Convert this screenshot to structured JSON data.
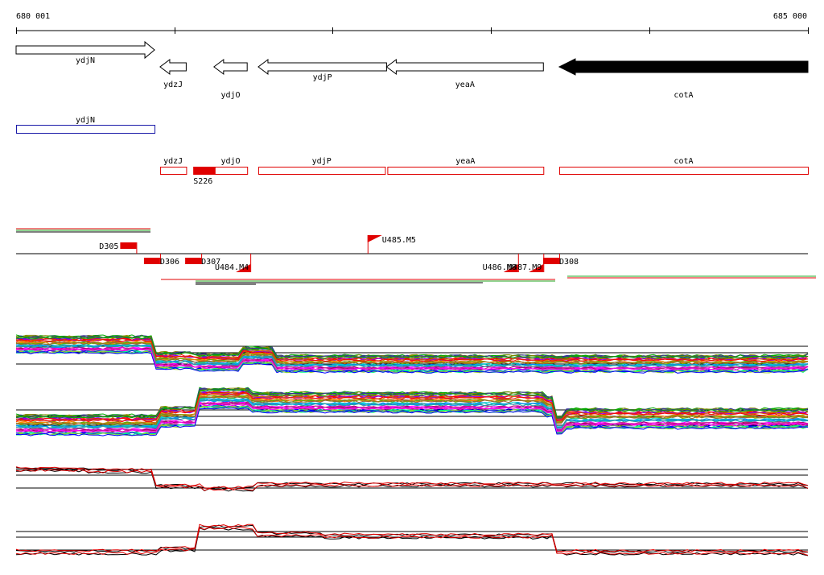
{
  "ruler": {
    "start_label": "680 001",
    "end_label": "685 000",
    "start_bp": 680001,
    "end_bp": 685000
  },
  "colors": {
    "gene_outline": "#000000",
    "filled_gene": "#000000",
    "blue_region": "#1a1aa8",
    "red_region": "#e00000",
    "trace_black": "#000000",
    "trace_red": "#e00000",
    "trace_green": "#22aa22"
  },
  "genes": [
    {
      "name": "ydjN",
      "start": 680001,
      "end": 680875,
      "strand": "+",
      "filled": false,
      "label_row": 0
    },
    {
      "name": "ydzJ",
      "start": 680910,
      "end": 681075,
      "strand": "-",
      "filled": false,
      "label_row": 1
    },
    {
      "name": "ydjO",
      "start": 681250,
      "end": 681460,
      "strand": "-",
      "filled": false,
      "label_row": 2
    },
    {
      "name": "ydjP",
      "start": 681530,
      "end": 682340,
      "strand": "-",
      "filled": false,
      "label_row": 0
    },
    {
      "name": "yeaA",
      "start": 682340,
      "end": 683330,
      "strand": "-",
      "filled": false,
      "label_row": 1
    },
    {
      "name": "cotA",
      "start": 683430,
      "end": 685000,
      "strand": "-",
      "filled": true,
      "label_row": 2
    }
  ],
  "blue_regions": [
    {
      "name": "ydjN",
      "start": 680001,
      "end": 680875
    }
  ],
  "red_regions": [
    {
      "name": "ydzJ",
      "start": 680910,
      "end": 681075
    },
    {
      "name": "",
      "start": 681120,
      "end": 681220
    },
    {
      "name": "ydjO",
      "start": 681250,
      "end": 681460
    },
    {
      "name": "ydjP",
      "start": 681530,
      "end": 682330
    },
    {
      "name": "yeaA",
      "start": 682345,
      "end": 683330
    },
    {
      "name": "cotA",
      "start": 683430,
      "end": 685000
    }
  ],
  "sites": [
    {
      "name": "S226",
      "start": 681120,
      "end": 681260
    }
  ],
  "features": [
    {
      "name": "D305",
      "type": "block",
      "pos": 680760,
      "side": "above",
      "label_side": "left"
    },
    {
      "name": "D306",
      "type": "block",
      "pos": 680910,
      "side": "below",
      "label_side": "right"
    },
    {
      "name": "D307",
      "type": "block",
      "pos": 681170,
      "side": "below",
      "label_side": "right"
    },
    {
      "name": "U484.M4",
      "type": "flag",
      "pos": 681480,
      "side": "below",
      "label_side": "left"
    },
    {
      "name": "U485.M5",
      "type": "flag",
      "pos": 682220,
      "side": "above",
      "label_side": "right"
    },
    {
      "name": "U486.M8",
      "type": "flag",
      "pos": 683170,
      "side": "below",
      "label_side": "left"
    },
    {
      "name": "U487.M9",
      "type": "flag",
      "pos": 683330,
      "side": "below",
      "label_side": "left"
    },
    {
      "name": "D308",
      "type": "block",
      "pos": 683430,
      "side": "below",
      "label_side": "right"
    }
  ]
}
